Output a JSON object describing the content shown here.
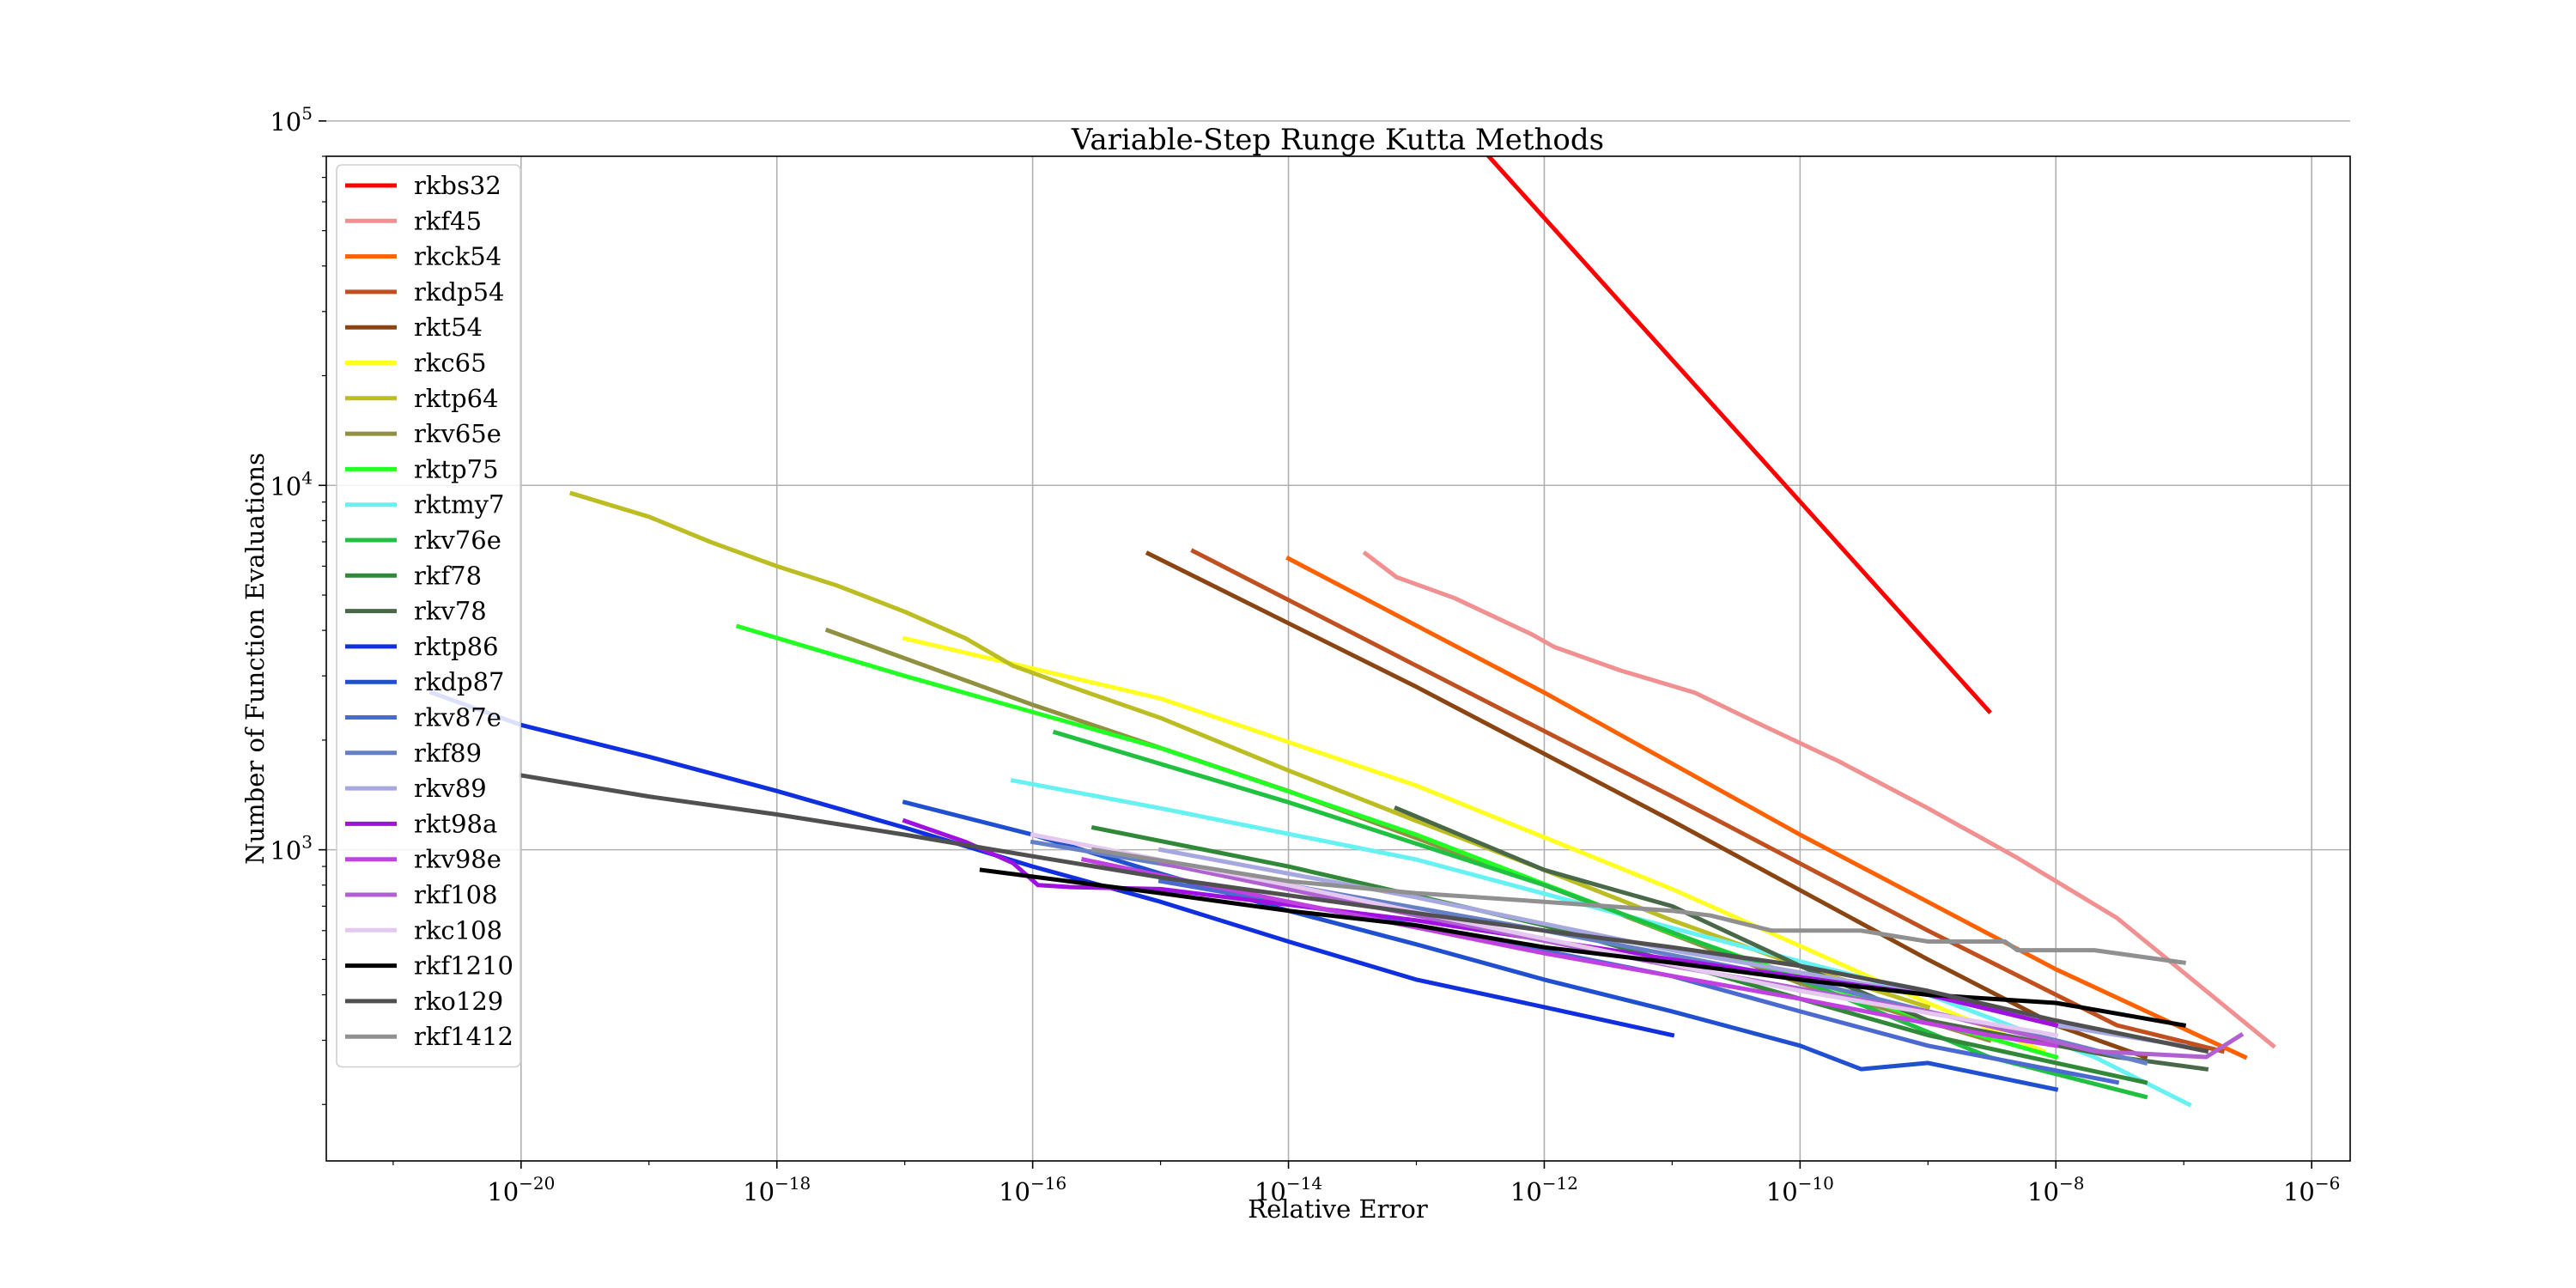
{
  "chart_data": {
    "type": "line",
    "title": "Variable-Step Runge Kutta Methods",
    "xlabel": "Relative Error",
    "ylabel": "Number of Function Evaluations",
    "xscale": "log",
    "yscale": "log",
    "xlim": [
      3e-22,
      2e-06
    ],
    "ylim": [
      140,
      80000
    ],
    "grid": true,
    "legend_position": "upper-left",
    "x_ticks": [
      {
        "base": "10",
        "exp": "−20",
        "value": 1e-20
      },
      {
        "base": "10",
        "exp": "−18",
        "value": 1e-18
      },
      {
        "base": "10",
        "exp": "−16",
        "value": 1e-16
      },
      {
        "base": "10",
        "exp": "−14",
        "value": 1e-14
      },
      {
        "base": "10",
        "exp": "−12",
        "value": 1e-12
      },
      {
        "base": "10",
        "exp": "−10",
        "value": 1e-10
      },
      {
        "base": "10",
        "exp": "−8",
        "value": 1e-08
      },
      {
        "base": "10",
        "exp": "−6",
        "value": 1e-06
      }
    ],
    "y_ticks": [
      {
        "base": "10",
        "exp": "3",
        "value": 1000
      },
      {
        "base": "10",
        "exp": "4",
        "value": 10000
      },
      {
        "base": "10",
        "exp": "5",
        "value": 100000
      }
    ],
    "series": [
      {
        "name": "rkbs32",
        "color": "#ff0000",
        "x": [
          3e-15,
          3e-09
        ],
        "y": [
          520000,
          2400
        ]
      },
      {
        "name": "rkf45",
        "color": "#f09090",
        "x": [
          4e-14,
          7e-14,
          2e-13,
          8e-13,
          1.2e-12,
          4e-12,
          1.5e-11,
          5e-11,
          2e-10,
          1e-09,
          5e-09,
          3e-08,
          5e-07
        ],
        "y": [
          6500,
          5600,
          4900,
          3900,
          3600,
          3100,
          2700,
          2200,
          1750,
          1300,
          950,
          650,
          290
        ]
      },
      {
        "name": "rkck54",
        "color": "#ff6000",
        "x": [
          1e-14,
          1e-12,
          1e-10,
          1e-08,
          3e-07
        ],
        "y": [
          6300,
          2700,
          1100,
          470,
          270
        ]
      },
      {
        "name": "rkdp54",
        "color": "#c05020",
        "x": [
          1.8e-15,
          1e-13,
          1e-11,
          1e-09,
          3e-08,
          2e-07
        ],
        "y": [
          6600,
          3200,
          1400,
          600,
          330,
          280
        ]
      },
      {
        "name": "rkt54",
        "color": "#8b4513",
        "x": [
          8e-16,
          1e-13,
          1e-11,
          1e-09,
          1e-08,
          5e-08
        ],
        "y": [
          6500,
          2800,
          1200,
          500,
          330,
          270
        ]
      },
      {
        "name": "rkc65",
        "color": "#ffff20",
        "x": [
          1e-17,
          1e-15,
          1e-13,
          1e-11,
          1e-09,
          8e-09
        ],
        "y": [
          3800,
          2600,
          1500,
          780,
          380,
          280
        ]
      },
      {
        "name": "rktp64",
        "color": "#bcbd22",
        "x": [
          2.5e-20,
          1e-19,
          3e-19,
          1e-18,
          3e-18,
          1e-17,
          3e-17,
          7e-17,
          2e-16,
          1e-15,
          1e-14,
          1e-13,
          1e-12,
          1e-11,
          1e-10,
          1e-09
        ],
        "y": [
          9500,
          8200,
          7000,
          6000,
          5300,
          4500,
          3800,
          3200,
          2800,
          2300,
          1650,
          1200,
          880,
          640,
          480,
          370
        ]
      },
      {
        "name": "rkv65e",
        "color": "#909040",
        "x": [
          2.5e-18,
          1e-16,
          1e-14,
          1e-12,
          1e-10,
          3e-09
        ],
        "y": [
          4000,
          2500,
          1450,
          800,
          430,
          300
        ]
      },
      {
        "name": "rktp75",
        "color": "#22ff22",
        "x": [
          5e-19,
          1e-17,
          1e-15,
          1e-13,
          1e-11,
          1e-09,
          1e-08
        ],
        "y": [
          4100,
          3000,
          1900,
          1100,
          590,
          340,
          270
        ]
      },
      {
        "name": "rktmy7",
        "color": "#66f2f2",
        "x": [
          7e-17,
          1e-15,
          1e-13,
          1e-11,
          1e-09,
          2e-08,
          1.1e-07
        ],
        "y": [
          1550,
          1300,
          940,
          610,
          400,
          270,
          200
        ]
      },
      {
        "name": "rkv76e",
        "color": "#20c040",
        "x": [
          1.5e-16,
          1e-14,
          1e-12,
          1e-10,
          3e-09,
          5e-08
        ],
        "y": [
          2100,
          1350,
          800,
          440,
          270,
          210
        ]
      },
      {
        "name": "rkf78",
        "color": "#308838",
        "x": [
          3e-16,
          1e-14,
          1e-12,
          1e-10,
          1e-09,
          5e-08
        ],
        "y": [
          1150,
          900,
          620,
          390,
          310,
          230
        ]
      },
      {
        "name": "rkv78",
        "color": "#486848",
        "x": [
          7e-14,
          1e-12,
          1e-11,
          1e-10,
          1e-09,
          3e-08,
          1.5e-07
        ],
        "y": [
          1300,
          880,
          700,
          480,
          340,
          270,
          250
        ]
      },
      {
        "name": "rktp86",
        "color": "#1030e0",
        "x": [
          2e-21,
          1e-20,
          1e-19,
          1e-18,
          1e-17,
          1e-16,
          1e-15,
          1e-14,
          1e-13,
          1e-12,
          1e-11
        ],
        "y": [
          2700,
          2200,
          1800,
          1450,
          1150,
          900,
          720,
          560,
          440,
          370,
          310
        ]
      },
      {
        "name": "rkdp87",
        "color": "#2050d0",
        "x": [
          1e-17,
          1e-16,
          1e-15,
          1e-14,
          1e-13,
          1e-12,
          1e-11,
          1e-10,
          3e-10,
          1e-09,
          1e-08
        ],
        "y": [
          1350,
          1100,
          860,
          680,
          550,
          440,
          360,
          290,
          250,
          260,
          220
        ]
      },
      {
        "name": "rkv87e",
        "color": "#4a6ad0",
        "x": [
          1e-15,
          1e-13,
          1e-11,
          1e-10,
          1e-09,
          3e-08
        ],
        "y": [
          820,
          620,
          450,
          360,
          290,
          230
        ]
      },
      {
        "name": "rkf89",
        "color": "#6680c8",
        "x": [
          1e-16,
          1e-14,
          1e-12,
          1e-10,
          1e-09,
          1e-08,
          5e-08
        ],
        "y": [
          1050,
          800,
          600,
          440,
          360,
          300,
          260
        ]
      },
      {
        "name": "rkv89",
        "color": "#a8a8e0",
        "x": [
          1e-15,
          1e-13,
          1e-11,
          1e-09,
          1e-08,
          1e-07
        ],
        "y": [
          1000,
          740,
          530,
          400,
          330,
          290
        ]
      },
      {
        "name": "rkt98a",
        "color": "#a010e0",
        "x": [
          1e-17,
          3e-17,
          7e-17,
          1.1e-16,
          2e-16,
          1e-15,
          1e-13,
          1e-11,
          1e-09,
          1e-08
        ],
        "y": [
          1200,
          1050,
          920,
          800,
          790,
          780,
          640,
          500,
          400,
          330
        ]
      },
      {
        "name": "rkv98e",
        "color": "#c040e0",
        "x": [
          2.5e-16,
          1e-14,
          1e-12,
          1e-10,
          3e-09,
          1e-08
        ],
        "y": [
          940,
          720,
          520,
          390,
          310,
          290
        ]
      },
      {
        "name": "rkf108",
        "color": "#b060d0",
        "x": [
          1e-15,
          1e-13,
          1e-11,
          1e-09,
          2e-08,
          1.5e-07,
          2.8e-07
        ],
        "y": [
          920,
          660,
          480,
          360,
          280,
          270,
          310
        ]
      },
      {
        "name": "rkc108",
        "color": "#e4c8ef",
        "x": [
          1e-16,
          1e-14,
          1e-12,
          1e-10,
          1e-08
        ],
        "y": [
          1100,
          800,
          570,
          410,
          310
        ]
      },
      {
        "name": "rkf1210",
        "color": "#000000",
        "x": [
          4e-17,
          1e-15,
          1e-14,
          1e-13,
          1e-12,
          1e-11,
          1e-10,
          1e-09,
          1e-08,
          1e-07
        ],
        "y": [
          880,
          760,
          680,
          620,
          540,
          490,
          440,
          400,
          380,
          330
        ]
      },
      {
        "name": "rko129",
        "color": "#505050",
        "x": [
          1e-20,
          1e-19,
          1e-18,
          1e-17,
          1e-16,
          1e-15,
          1e-14,
          1e-13,
          1e-12,
          1e-11,
          1e-10,
          1e-09,
          1e-08,
          1.5e-07
        ],
        "y": [
          1600,
          1400,
          1250,
          1100,
          960,
          840,
          750,
          670,
          600,
          540,
          480,
          410,
          340,
          280
        ]
      },
      {
        "name": "rkf1412",
        "color": "#909090",
        "x": [
          3e-16,
          1e-14,
          1e-13,
          1e-12,
          1e-11,
          2e-11,
          6e-11,
          3e-10,
          1e-09,
          4e-09,
          5e-09,
          2e-08,
          1e-07
        ],
        "y": [
          1000,
          820,
          760,
          720,
          680,
          660,
          600,
          600,
          560,
          560,
          530,
          530,
          490
        ]
      }
    ]
  }
}
